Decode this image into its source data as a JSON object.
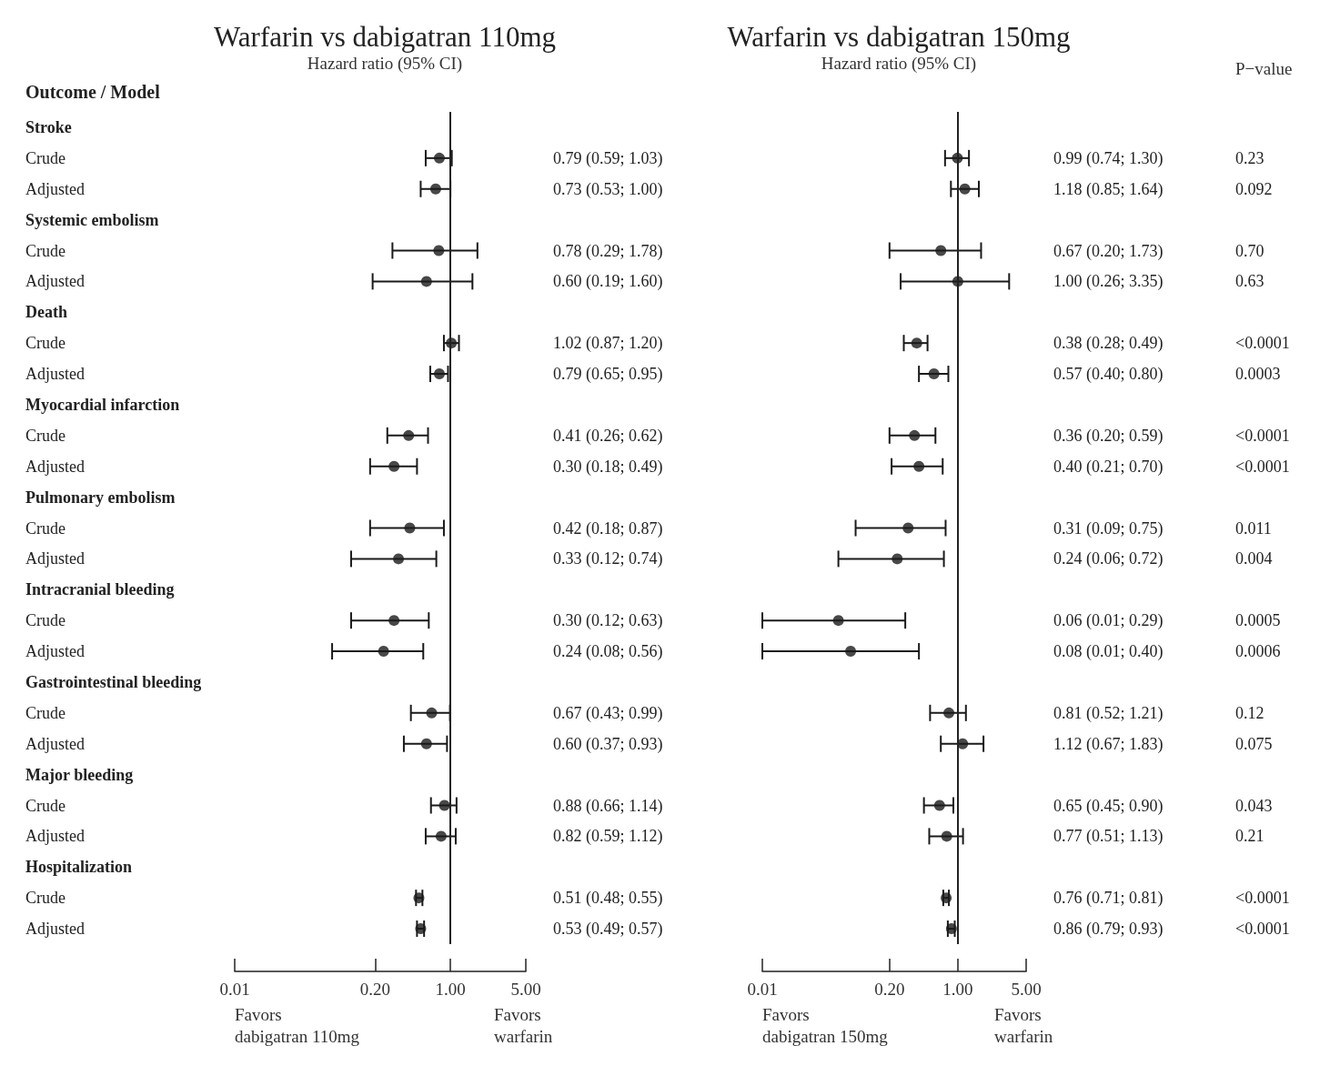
{
  "chart_data": [
    {
      "type": "scatter",
      "orientation": "horizontal",
      "title": "Warfarin vs dabigatran 110mg",
      "subtitle": "Hazard ratio (95% CI)",
      "ylabel": "Outcome / Model",
      "log": "x",
      "marker": "circle",
      "categories": [
        "Stroke",
        "Crude",
        "Adjusted",
        "Systemic embolism",
        "Crude",
        "Adjusted",
        "Death",
        "Crude",
        "Adjusted",
        "Myocardial infarction",
        "Crude",
        "Adjusted",
        "Pulmonary embolism",
        "Crude",
        "Adjusted",
        "Intracranial bleeding",
        "Crude",
        "Adjusted",
        "Gastrointestinal bleeding",
        "Crude",
        "Adjusted",
        "Major bleeding",
        "Crude",
        "Adjusted",
        "Hospitalization",
        "Crude",
        "Adjusted"
      ],
      "xlim": [
        0.01,
        5
      ],
      "xticks": [
        {
          "value": 0.01,
          "label": "0.01"
        },
        {
          "value": 0.2,
          "label": "0.20"
        },
        {
          "value": 1,
          "label": "1.00"
        },
        {
          "value": 5,
          "label": "5.00"
        }
      ],
      "ref_lines": [
        {
          "axis": "x",
          "value": 1
        }
      ],
      "series": [
        {
          "color": "#1a1a1a",
          "values": [
            null,
            0.79,
            0.73,
            null,
            0.78,
            0.6,
            null,
            1.02,
            0.79,
            null,
            0.41,
            0.3,
            null,
            0.42,
            0.33,
            null,
            0.3,
            0.24,
            null,
            0.67,
            0.6,
            null,
            0.88,
            0.82,
            null,
            0.51,
            0.53
          ],
          "errors": [
            null,
            [
              0.59,
              1.03
            ],
            [
              0.53,
              1.0
            ],
            null,
            [
              0.29,
              1.78
            ],
            [
              0.19,
              1.6
            ],
            null,
            [
              0.87,
              1.2
            ],
            [
              0.65,
              0.95
            ],
            null,
            [
              0.26,
              0.62
            ],
            [
              0.18,
              0.49
            ],
            null,
            [
              0.18,
              0.87
            ],
            [
              0.12,
              0.74
            ],
            null,
            [
              0.12,
              0.63
            ],
            [
              0.08,
              0.56
            ],
            null,
            [
              0.43,
              0.99
            ],
            [
              0.37,
              0.93
            ],
            null,
            [
              0.66,
              1.14
            ],
            [
              0.59,
              1.12
            ],
            null,
            [
              0.48,
              0.55
            ],
            [
              0.49,
              0.57
            ]
          ],
          "value_labels": [
            null,
            "0.79 (0.59; 1.03)",
            "0.73 (0.53; 1.00)",
            null,
            "0.78 (0.29; 1.78)",
            "0.60 (0.19; 1.60)",
            null,
            "1.02 (0.87; 1.20)",
            "0.79 (0.65; 0.95)",
            null,
            "0.41 (0.26; 0.62)",
            "0.30 (0.18; 0.49)",
            null,
            "0.42 (0.18; 0.87)",
            "0.33 (0.12; 0.74)",
            null,
            "0.30 (0.12; 0.63)",
            "0.24 (0.08; 0.56)",
            null,
            "0.67 (0.43; 0.99)",
            "0.60 (0.37; 0.93)",
            null,
            "0.88 (0.66; 1.14)",
            "0.82 (0.59; 1.12)",
            null,
            "0.51 (0.48; 0.55)",
            "0.53 (0.49; 0.57)"
          ]
        }
      ],
      "annotations": [
        "Favors\ndabigatran 110mg",
        "Favors\nwarfarin"
      ]
    },
    {
      "type": "scatter",
      "orientation": "horizontal",
      "title": "Warfarin vs dabigatran 150mg",
      "subtitle": "Hazard ratio (95% CI)",
      "log": "x",
      "marker": "circle",
      "tick_labels": "x",
      "categories": [
        null,
        null,
        null,
        null,
        null,
        null,
        null,
        null,
        null,
        null,
        null,
        null,
        null,
        null,
        null,
        null,
        null,
        null,
        null,
        null,
        null,
        null,
        null,
        null,
        null,
        null,
        null
      ],
      "xlim": [
        0.01,
        5
      ],
      "xticks": [
        {
          "value": 0.01,
          "label": "0.01"
        },
        {
          "value": 0.2,
          "label": "0.20"
        },
        {
          "value": 1,
          "label": "1.00"
        },
        {
          "value": 5,
          "label": "5.00"
        }
      ],
      "ref_lines": [
        {
          "axis": "x",
          "value": 1
        }
      ],
      "series": [
        {
          "color": "#1a1a1a",
          "values": [
            null,
            0.99,
            1.18,
            null,
            0.67,
            1.0,
            null,
            0.38,
            0.57,
            null,
            0.36,
            0.4,
            null,
            0.31,
            0.24,
            null,
            0.06,
            0.08,
            null,
            0.81,
            1.12,
            null,
            0.65,
            0.77,
            null,
            0.76,
            0.86
          ],
          "errors": [
            null,
            [
              0.74,
              1.3
            ],
            [
              0.85,
              1.64
            ],
            null,
            [
              0.2,
              1.73
            ],
            [
              0.26,
              3.35
            ],
            null,
            [
              0.28,
              0.49
            ],
            [
              0.4,
              0.8
            ],
            null,
            [
              0.2,
              0.59
            ],
            [
              0.21,
              0.7
            ],
            null,
            [
              0.09,
              0.75
            ],
            [
              0.06,
              0.72
            ],
            null,
            [
              0.01,
              0.29
            ],
            [
              0.01,
              0.4
            ],
            null,
            [
              0.52,
              1.21
            ],
            [
              0.67,
              1.83
            ],
            null,
            [
              0.45,
              0.9
            ],
            [
              0.51,
              1.13
            ],
            null,
            [
              0.71,
              0.81
            ],
            [
              0.79,
              0.93
            ]
          ],
          "value_labels": [
            null,
            "0.99 (0.74; 1.30)",
            "1.18 (0.85; 1.64)",
            null,
            "0.67 (0.20; 1.73)",
            "1.00 (0.26; 3.35)",
            null,
            "0.38 (0.28; 0.49)",
            "0.57 (0.40; 0.80)",
            null,
            "0.36 (0.20; 0.59)",
            "0.40 (0.21; 0.70)",
            null,
            "0.31 (0.09; 0.75)",
            "0.24 (0.06; 0.72)",
            null,
            "0.06 (0.01; 0.29)",
            "0.08 (0.01; 0.40)",
            null,
            "0.81 (0.52; 1.21)",
            "1.12 (0.67; 1.83)",
            null,
            "0.65 (0.45; 0.90)",
            "0.77 (0.51; 1.13)",
            null,
            "0.76 (0.71; 0.81)",
            "0.86 (0.79; 0.93)"
          ]
        }
      ],
      "annotations": [
        "Favors\ndabigatran 150mg",
        "Favors\nwarfarin",
        "P−value",
        "0.23",
        "0.092",
        "0.70",
        "0.63",
        "<0.0001",
        "0.0003",
        "<0.0001",
        "<0.0001",
        "0.011",
        "0.004",
        "0.0005",
        "0.0006",
        "0.12",
        "0.075",
        "0.043",
        "0.21",
        "<0.0001",
        "<0.0001"
      ]
    }
  ]
}
